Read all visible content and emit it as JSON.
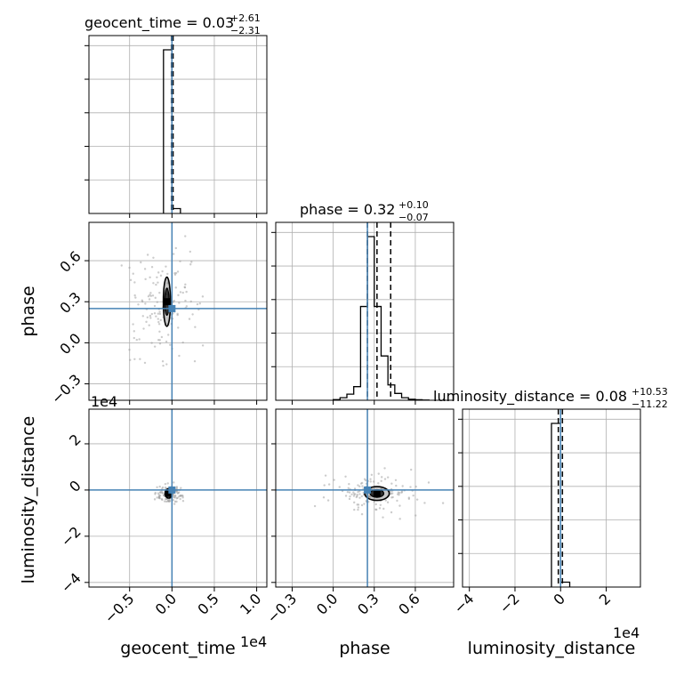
{
  "chart_data": {
    "type": "corner",
    "parameters": [
      "geocent_time",
      "phase",
      "luminosity_distance"
    ],
    "colors": {
      "truth": "#4682b4",
      "hist": "#000000",
      "grid": "#b0b0b0",
      "scatter": "#9a9a9a"
    },
    "truths": {
      "geocent_time": 0.0,
      "phase": 0.25,
      "luminosity_distance": 0.0
    },
    "diagonal": [
      {
        "param": "geocent_time",
        "title": "geocent_time = 0.03",
        "title_plus": "+2.61",
        "title_minus": "−2.31",
        "xlim": [
          -0.98,
          1.12
        ],
        "quantiles": [
          -0.005,
          0.005,
          0.013
        ],
        "bin_edges": [
          -0.1,
          0.0,
          0.1
        ],
        "counts": [
          1.0,
          0.03
        ]
      },
      {
        "param": "phase",
        "title": "phase = 0.32",
        "title_plus": "+0.10",
        "title_minus": "−0.07",
        "xlim": [
          -0.42,
          0.88
        ],
        "quantiles": [
          0.25,
          0.32,
          0.42
        ],
        "bin_edges": [
          0.0,
          0.05,
          0.1,
          0.15,
          0.2,
          0.25,
          0.3,
          0.35,
          0.4,
          0.45,
          0.5,
          0.55,
          0.6,
          0.65,
          0.7
        ],
        "counts": [
          0.004,
          0.015,
          0.036,
          0.08,
          0.55,
          0.96,
          0.55,
          0.26,
          0.09,
          0.04,
          0.015,
          0.006,
          0.003,
          0.001
        ]
      },
      {
        "param": "luminosity_distance",
        "title": "luminosity_distance = 0.08",
        "title_plus": "+10.53",
        "title_minus": "−11.22",
        "xlim": [
          -4.3,
          3.5
        ],
        "quantiles": [
          -0.1,
          0.0,
          0.08
        ],
        "bin_edges": [
          -0.4,
          0.0,
          0.4
        ],
        "counts": [
          1.0,
          0.03
        ]
      }
    ],
    "axes": {
      "geocent_time": {
        "ticks": [
          -0.5,
          0.0,
          0.5,
          1.0
        ],
        "tick_labels": [
          "−0.5",
          "0.0",
          "0.5",
          "1.0"
        ],
        "offset_label": "1e4",
        "label": "geocent_time",
        "ylim": [
          -4.2,
          3.5
        ]
      },
      "phase": {
        "ticks": [
          -0.3,
          0.0,
          0.3,
          0.6
        ],
        "tick_labels": [
          "−0.3",
          "0.0",
          "0.3",
          "0.6"
        ],
        "label": "phase"
      },
      "luminosity_distance": {
        "ticks": [
          -4,
          -2,
          0,
          2
        ],
        "tick_labels": [
          "−4",
          "−2",
          "0",
          "2"
        ],
        "offset_label": "1e4",
        "label": "luminosity_distance"
      }
    },
    "pairs": [
      {
        "x": "geocent_time",
        "y": "phase",
        "center": [
          -0.06,
          0.3
        ],
        "contour_half_widths": [
          0.04,
          0.18
        ],
        "scatter_spread": [
          0.14,
          0.14
        ]
      },
      {
        "x": "geocent_time",
        "y": "luminosity_distance",
        "center": [
          -0.04,
          -0.15
        ],
        "contour_half_widths": [
          0.02,
          0.2
        ],
        "scatter_spread": [
          0.05,
          0.12
        ]
      },
      {
        "x": "phase",
        "y": "luminosity_distance",
        "center": [
          0.32,
          -0.15
        ],
        "contour_half_widths": [
          0.09,
          0.3
        ],
        "scatter_spread": [
          0.1,
          0.25
        ]
      }
    ]
  }
}
